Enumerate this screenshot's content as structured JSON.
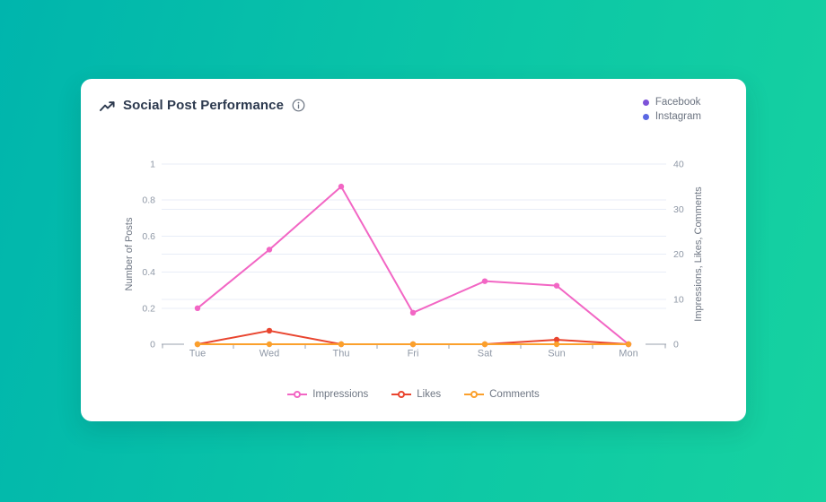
{
  "card": {
    "title": "Social Post Performance"
  },
  "platform_legend": [
    {
      "label": "Facebook",
      "color": "#7d52d8"
    },
    {
      "label": "Instagram",
      "color": "#5b68e3"
    }
  ],
  "chart_data": {
    "type": "line",
    "categories": [
      "Tue",
      "Wed",
      "Thu",
      "Fri",
      "Sat",
      "Sun",
      "Mon"
    ],
    "series": [
      {
        "name": "Impressions",
        "color": "#f266c4",
        "values": [
          8,
          21,
          35,
          7,
          14,
          13,
          0
        ]
      },
      {
        "name": "Likes",
        "color": "#e9452f",
        "values": [
          0,
          3,
          0,
          0,
          0,
          1,
          0
        ]
      },
      {
        "name": "Comments",
        "color": "#fba02c",
        "values": [
          0,
          0,
          0,
          0,
          0,
          0,
          0
        ]
      }
    ],
    "left_axis": {
      "label": "Number of Posts",
      "ticks": [
        0,
        0.2,
        0.4,
        0.6,
        0.8,
        1
      ],
      "min": 0,
      "max": 1
    },
    "right_axis": {
      "label": "Impressions, Likes, Comments",
      "ticks": [
        0,
        10,
        20,
        30,
        40
      ],
      "min": 0,
      "max": 40
    },
    "grid": true,
    "legend_position": "bottom",
    "colors": {
      "grid_line": "#e8edf7",
      "axis_line": "#9aa1ad",
      "tick_text": "#8f98a6",
      "axis_title_text": "#6e7683",
      "category_text": "#8f98a6"
    }
  }
}
